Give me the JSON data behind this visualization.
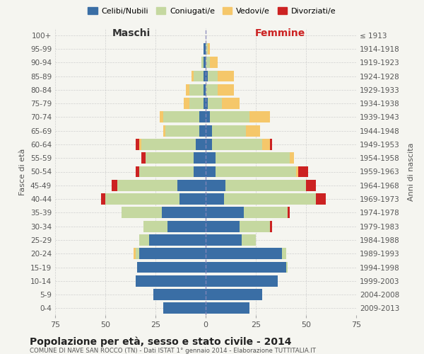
{
  "age_groups": [
    "0-4",
    "5-9",
    "10-14",
    "15-19",
    "20-24",
    "25-29",
    "30-34",
    "35-39",
    "40-44",
    "45-49",
    "50-54",
    "55-59",
    "60-64",
    "65-69",
    "70-74",
    "75-79",
    "80-84",
    "85-89",
    "90-94",
    "95-99",
    "100+"
  ],
  "birth_years": [
    "2009-2013",
    "2004-2008",
    "1999-2003",
    "1994-1998",
    "1989-1993",
    "1984-1988",
    "1979-1983",
    "1974-1978",
    "1969-1973",
    "1964-1968",
    "1959-1963",
    "1954-1958",
    "1949-1953",
    "1944-1948",
    "1939-1943",
    "1934-1938",
    "1929-1933",
    "1924-1928",
    "1919-1923",
    "1914-1918",
    "≤ 1913"
  ],
  "males": {
    "celibi": [
      21,
      26,
      35,
      34,
      33,
      28,
      19,
      22,
      13,
      14,
      6,
      6,
      5,
      3,
      3,
      1,
      1,
      1,
      1,
      1,
      0
    ],
    "coniugati": [
      0,
      0,
      0,
      0,
      2,
      5,
      12,
      20,
      37,
      30,
      27,
      24,
      27,
      17,
      18,
      7,
      7,
      5,
      1,
      0,
      0
    ],
    "vedovi": [
      0,
      0,
      0,
      0,
      1,
      0,
      0,
      0,
      0,
      0,
      0,
      0,
      1,
      1,
      2,
      3,
      2,
      1,
      0,
      0,
      0
    ],
    "divorziati": [
      0,
      0,
      0,
      0,
      0,
      0,
      0,
      0,
      2,
      3,
      2,
      2,
      2,
      0,
      0,
      0,
      0,
      0,
      0,
      0,
      0
    ]
  },
  "females": {
    "nubili": [
      22,
      28,
      36,
      40,
      38,
      18,
      17,
      19,
      9,
      10,
      5,
      5,
      3,
      3,
      2,
      1,
      0,
      1,
      0,
      0,
      0
    ],
    "coniugate": [
      0,
      0,
      0,
      1,
      2,
      7,
      15,
      22,
      46,
      40,
      40,
      37,
      25,
      17,
      20,
      7,
      6,
      5,
      2,
      1,
      0
    ],
    "vedove": [
      0,
      0,
      0,
      0,
      0,
      0,
      0,
      0,
      0,
      0,
      1,
      2,
      4,
      7,
      10,
      9,
      8,
      8,
      4,
      1,
      0
    ],
    "divorziate": [
      0,
      0,
      0,
      0,
      0,
      0,
      1,
      1,
      5,
      5,
      5,
      0,
      1,
      0,
      0,
      0,
      0,
      0,
      0,
      0,
      0
    ]
  },
  "colors": {
    "celibi": "#3a6ea5",
    "coniugati": "#c5d8a0",
    "vedovi": "#f5c76a",
    "divorziati": "#cc2222"
  },
  "title": "Popolazione per età, sesso e stato civile - 2014",
  "subtitle": "COMUNE DI NAVE SAN ROCCO (TN) - Dati ISTAT 1° gennaio 2014 - Elaborazione TUTTITALIA.IT",
  "xlabel_left": "Maschi",
  "xlabel_right": "Femmine",
  "ylabel_left": "Fasce di età",
  "ylabel_right": "Anni di nascita",
  "xlim": 75,
  "legend_labels": [
    "Celibi/Nubili",
    "Coniugati/e",
    "Vedovi/e",
    "Divorziati/e"
  ],
  "background_color": "#f5f5f0",
  "grid_color": "#cccccc"
}
